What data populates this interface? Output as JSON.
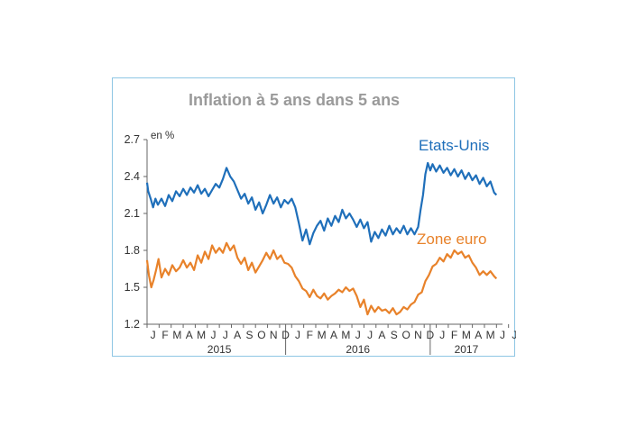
{
  "chart_data": {
    "type": "line",
    "title": "Inflation à 5 ans dans 5 ans",
    "ylabel": "en %",
    "xlabel": "",
    "ylim": [
      1.2,
      2.7
    ],
    "yticks": [
      "2.7",
      "2.4",
      "2.1",
      "1.8",
      "1.5",
      "1.2"
    ],
    "xlim": [
      0,
      29.5
    ],
    "x_month_ticks": [
      "J",
      "F",
      "M",
      "A",
      "M",
      "J",
      "J",
      "A",
      "S",
      "O",
      "N",
      "D",
      "J",
      "F",
      "M",
      "A",
      "M",
      "J",
      "J",
      "A",
      "S",
      "O",
      "N",
      "D",
      "J",
      "F",
      "M",
      "A",
      "M",
      "J",
      "J"
    ],
    "years": [
      {
        "label": "2015",
        "center": 6
      },
      {
        "label": "2016",
        "center": 17.5
      },
      {
        "label": "2017",
        "center": 26.5
      }
    ],
    "year_separators": [
      11.5,
      23.5
    ],
    "x_unit": "months since Jan 2015",
    "series": [
      {
        "name": "Etats-Unis",
        "color": "#1f6fba",
        "x": [
          0,
          0.1,
          0.3,
          0.5,
          0.7,
          0.9,
          1.2,
          1.5,
          1.8,
          2.1,
          2.4,
          2.7,
          3.0,
          3.3,
          3.6,
          3.9,
          4.2,
          4.5,
          4.8,
          5.1,
          5.4,
          5.7,
          6.0,
          6.3,
          6.6,
          6.9,
          7.2,
          7.5,
          7.8,
          8.1,
          8.4,
          8.7,
          9.0,
          9.3,
          9.6,
          9.9,
          10.2,
          10.5,
          10.8,
          11.1,
          11.4,
          11.7,
          12.0,
          12.3,
          12.6,
          12.9,
          13.2,
          13.5,
          13.8,
          14.1,
          14.4,
          14.7,
          15.0,
          15.3,
          15.6,
          15.9,
          16.2,
          16.5,
          16.8,
          17.1,
          17.4,
          17.7,
          18.0,
          18.3,
          18.6,
          18.9,
          19.2,
          19.5,
          19.8,
          20.1,
          20.4,
          20.7,
          21.0,
          21.3,
          21.6,
          21.9,
          22.2,
          22.5,
          22.7,
          22.9,
          23.1,
          23.3,
          23.5,
          23.7,
          24.0,
          24.3,
          24.6,
          24.9,
          25.2,
          25.5,
          25.8,
          26.1,
          26.4,
          26.7,
          27.0,
          27.3,
          27.6,
          27.9,
          28.2,
          28.5,
          28.8,
          29.0
        ],
        "values": [
          2.35,
          2.28,
          2.22,
          2.15,
          2.22,
          2.17,
          2.22,
          2.16,
          2.25,
          2.2,
          2.28,
          2.24,
          2.3,
          2.25,
          2.31,
          2.27,
          2.33,
          2.26,
          2.3,
          2.24,
          2.29,
          2.34,
          2.31,
          2.38,
          2.47,
          2.4,
          2.36,
          2.29,
          2.22,
          2.26,
          2.18,
          2.23,
          2.13,
          2.19,
          2.1,
          2.17,
          2.25,
          2.18,
          2.23,
          2.15,
          2.21,
          2.18,
          2.22,
          2.15,
          2.02,
          1.88,
          1.97,
          1.85,
          1.94,
          2.0,
          2.04,
          1.96,
          2.06,
          2.0,
          2.08,
          2.03,
          2.13,
          2.06,
          2.1,
          2.05,
          1.99,
          2.05,
          1.98,
          2.03,
          1.87,
          1.95,
          1.9,
          1.97,
          1.92,
          2.0,
          1.93,
          1.98,
          1.94,
          2.0,
          1.93,
          1.98,
          1.93,
          1.99,
          2.13,
          2.25,
          2.42,
          2.51,
          2.45,
          2.5,
          2.44,
          2.49,
          2.43,
          2.47,
          2.41,
          2.46,
          2.4,
          2.45,
          2.38,
          2.43,
          2.37,
          2.41,
          2.34,
          2.39,
          2.32,
          2.36,
          2.27,
          2.25
        ]
      },
      {
        "name": "Zone euro",
        "color": "#e8822a",
        "x": [
          0,
          0.15,
          0.35,
          0.55,
          0.75,
          0.95,
          1.2,
          1.5,
          1.8,
          2.1,
          2.4,
          2.7,
          3.0,
          3.3,
          3.6,
          3.9,
          4.2,
          4.5,
          4.8,
          5.1,
          5.4,
          5.7,
          6.0,
          6.3,
          6.6,
          6.9,
          7.2,
          7.5,
          7.8,
          8.1,
          8.4,
          8.7,
          9.0,
          9.3,
          9.6,
          9.9,
          10.2,
          10.5,
          10.8,
          11.1,
          11.4,
          11.7,
          12.0,
          12.3,
          12.6,
          12.9,
          13.2,
          13.5,
          13.8,
          14.1,
          14.4,
          14.7,
          15.0,
          15.3,
          15.6,
          15.9,
          16.2,
          16.5,
          16.8,
          17.1,
          17.4,
          17.7,
          18.0,
          18.3,
          18.6,
          18.9,
          19.2,
          19.5,
          19.8,
          20.1,
          20.4,
          20.7,
          21.0,
          21.3,
          21.6,
          21.9,
          22.2,
          22.5,
          22.8,
          23.1,
          23.4,
          23.7,
          24.0,
          24.3,
          24.6,
          24.9,
          25.2,
          25.5,
          25.8,
          26.1,
          26.4,
          26.7,
          27.0,
          27.3,
          27.6,
          27.9,
          28.2,
          28.5,
          28.8,
          29.0
        ],
        "values": [
          1.72,
          1.6,
          1.5,
          1.56,
          1.64,
          1.73,
          1.58,
          1.65,
          1.6,
          1.68,
          1.63,
          1.66,
          1.72,
          1.66,
          1.7,
          1.64,
          1.76,
          1.7,
          1.79,
          1.73,
          1.84,
          1.78,
          1.82,
          1.78,
          1.86,
          1.8,
          1.84,
          1.74,
          1.69,
          1.74,
          1.64,
          1.7,
          1.62,
          1.67,
          1.72,
          1.78,
          1.73,
          1.8,
          1.73,
          1.76,
          1.7,
          1.69,
          1.66,
          1.59,
          1.55,
          1.49,
          1.47,
          1.42,
          1.48,
          1.43,
          1.41,
          1.45,
          1.4,
          1.43,
          1.45,
          1.48,
          1.46,
          1.5,
          1.47,
          1.49,
          1.43,
          1.34,
          1.4,
          1.28,
          1.35,
          1.3,
          1.34,
          1.31,
          1.32,
          1.29,
          1.33,
          1.28,
          1.3,
          1.34,
          1.32,
          1.36,
          1.38,
          1.44,
          1.46,
          1.55,
          1.6,
          1.67,
          1.69,
          1.74,
          1.71,
          1.77,
          1.74,
          1.8,
          1.77,
          1.79,
          1.74,
          1.76,
          1.7,
          1.66,
          1.6,
          1.63,
          1.6,
          1.63,
          1.59,
          1.57
        ]
      }
    ]
  }
}
